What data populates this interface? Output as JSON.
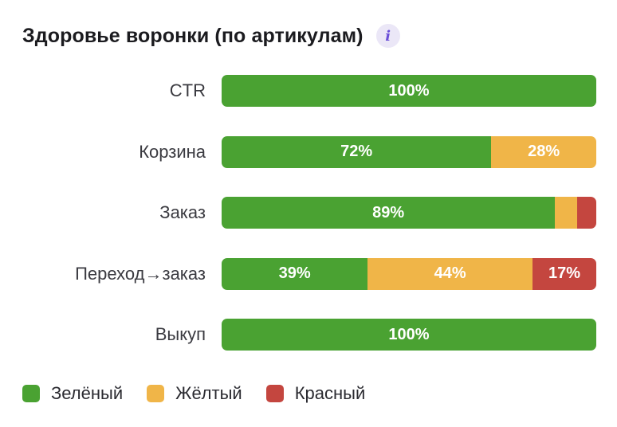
{
  "header": {
    "title": "Здоровье воронки (по артикулам)",
    "info_icon": "info-icon"
  },
  "colors": {
    "green": "#4aa232",
    "yellow": "#f0b548",
    "red": "#c4463f"
  },
  "chart_data": {
    "type": "bar",
    "orientation": "horizontal",
    "stacked": true,
    "normalized": true,
    "title": "Здоровье воронки (по артикулам)",
    "categories": [
      "CTR",
      "Корзина",
      "Заказ",
      "Переход→заказ",
      "Выкуп"
    ],
    "series": [
      {
        "name": "Зелёный",
        "color": "#4aa232",
        "values": [
          100,
          72,
          89,
          39,
          100
        ]
      },
      {
        "name": "Жёлтый",
        "color": "#f0b548",
        "values": [
          0,
          28,
          6,
          44,
          0
        ]
      },
      {
        "name": "Красный",
        "color": "#c4463f",
        "values": [
          0,
          0,
          5,
          17,
          0
        ]
      }
    ],
    "data_labels": [
      [
        "100%",
        "",
        ""
      ],
      [
        "72%",
        "28%",
        ""
      ],
      [
        "89%",
        "",
        ""
      ],
      [
        "39%",
        "44%",
        "17%"
      ],
      [
        "100%",
        "",
        ""
      ]
    ],
    "xlim": [
      0,
      100
    ],
    "unit": "%",
    "legend": "bottom-left",
    "grid": false
  },
  "legend": {
    "items": [
      {
        "label": "Зелёный",
        "color": "#4aa232"
      },
      {
        "label": "Жёлтый",
        "color": "#f0b548"
      },
      {
        "label": "Красный",
        "color": "#c4463f"
      }
    ]
  }
}
